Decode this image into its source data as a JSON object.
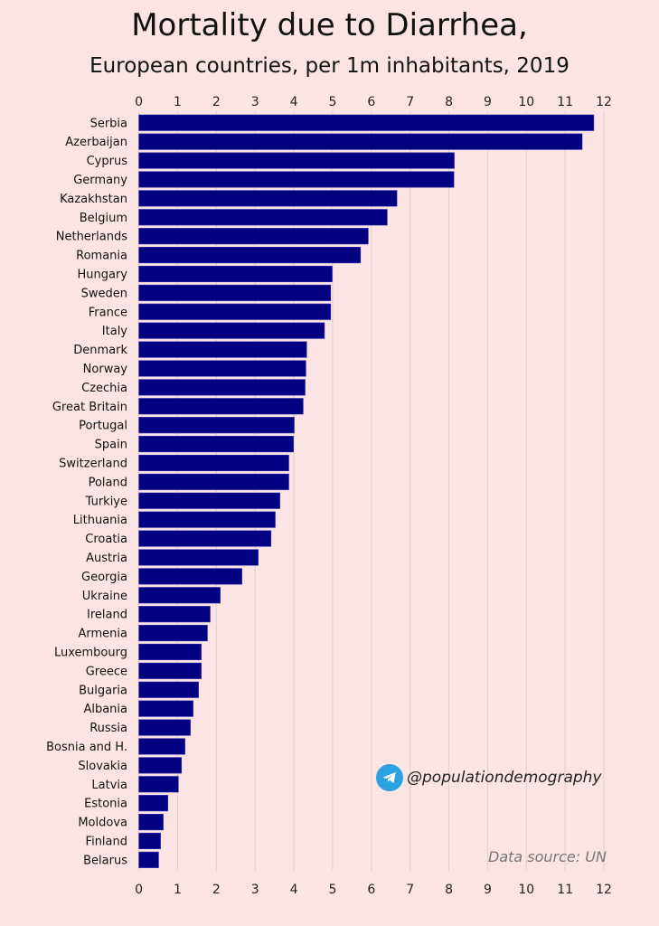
{
  "chart_data": {
    "type": "bar",
    "orientation": "horizontal",
    "title": "Mortality due to Diarrhea,",
    "subtitle": "European countries, per 1m inhabitants, 2019",
    "xlim": [
      0,
      12
    ],
    "xticks": [
      0,
      1,
      2,
      3,
      4,
      5,
      6,
      7,
      8,
      9,
      10,
      11,
      12
    ],
    "grid": true,
    "bar_color": "#000080",
    "categories": [
      "Serbia",
      "Azerbaijan",
      "Cyprus",
      "Germany",
      "Kazakhstan",
      "Belgium",
      "Netherlands",
      "Romania",
      "Hungary",
      "Sweden",
      "France",
      "Italy",
      "Denmark",
      "Norway",
      "Czechia",
      "Great Britain",
      "Portugal",
      "Spain",
      "Switzerland",
      "Poland",
      "Turkiye",
      "Lithuania",
      "Croatia",
      "Austria",
      "Georgia",
      "Ukraine",
      "Ireland",
      "Armenia",
      "Luxembourg",
      "Greece",
      "Bulgaria",
      "Albania",
      "Russia",
      "Bosnia and H.",
      "Slovakia",
      "Latvia",
      "Estonia",
      "Moldova",
      "Finland",
      "Belarus"
    ],
    "values": [
      11.74,
      11.44,
      8.14,
      8.13,
      6.66,
      6.41,
      5.92,
      5.72,
      4.99,
      4.95,
      4.95,
      4.79,
      4.33,
      4.31,
      4.29,
      4.24,
      4.01,
      3.99,
      3.87,
      3.87,
      3.64,
      3.52,
      3.41,
      3.08,
      2.66,
      2.1,
      1.84,
      1.77,
      1.61,
      1.61,
      1.54,
      1.4,
      1.33,
      1.19,
      1.1,
      1.02,
      0.75,
      0.63,
      0.56,
      0.51
    ]
  },
  "telegram": {
    "icon": "telegram-icon",
    "handle": "@populationdemography",
    "color": "#2aa3e0"
  },
  "source": "Data source: UN"
}
